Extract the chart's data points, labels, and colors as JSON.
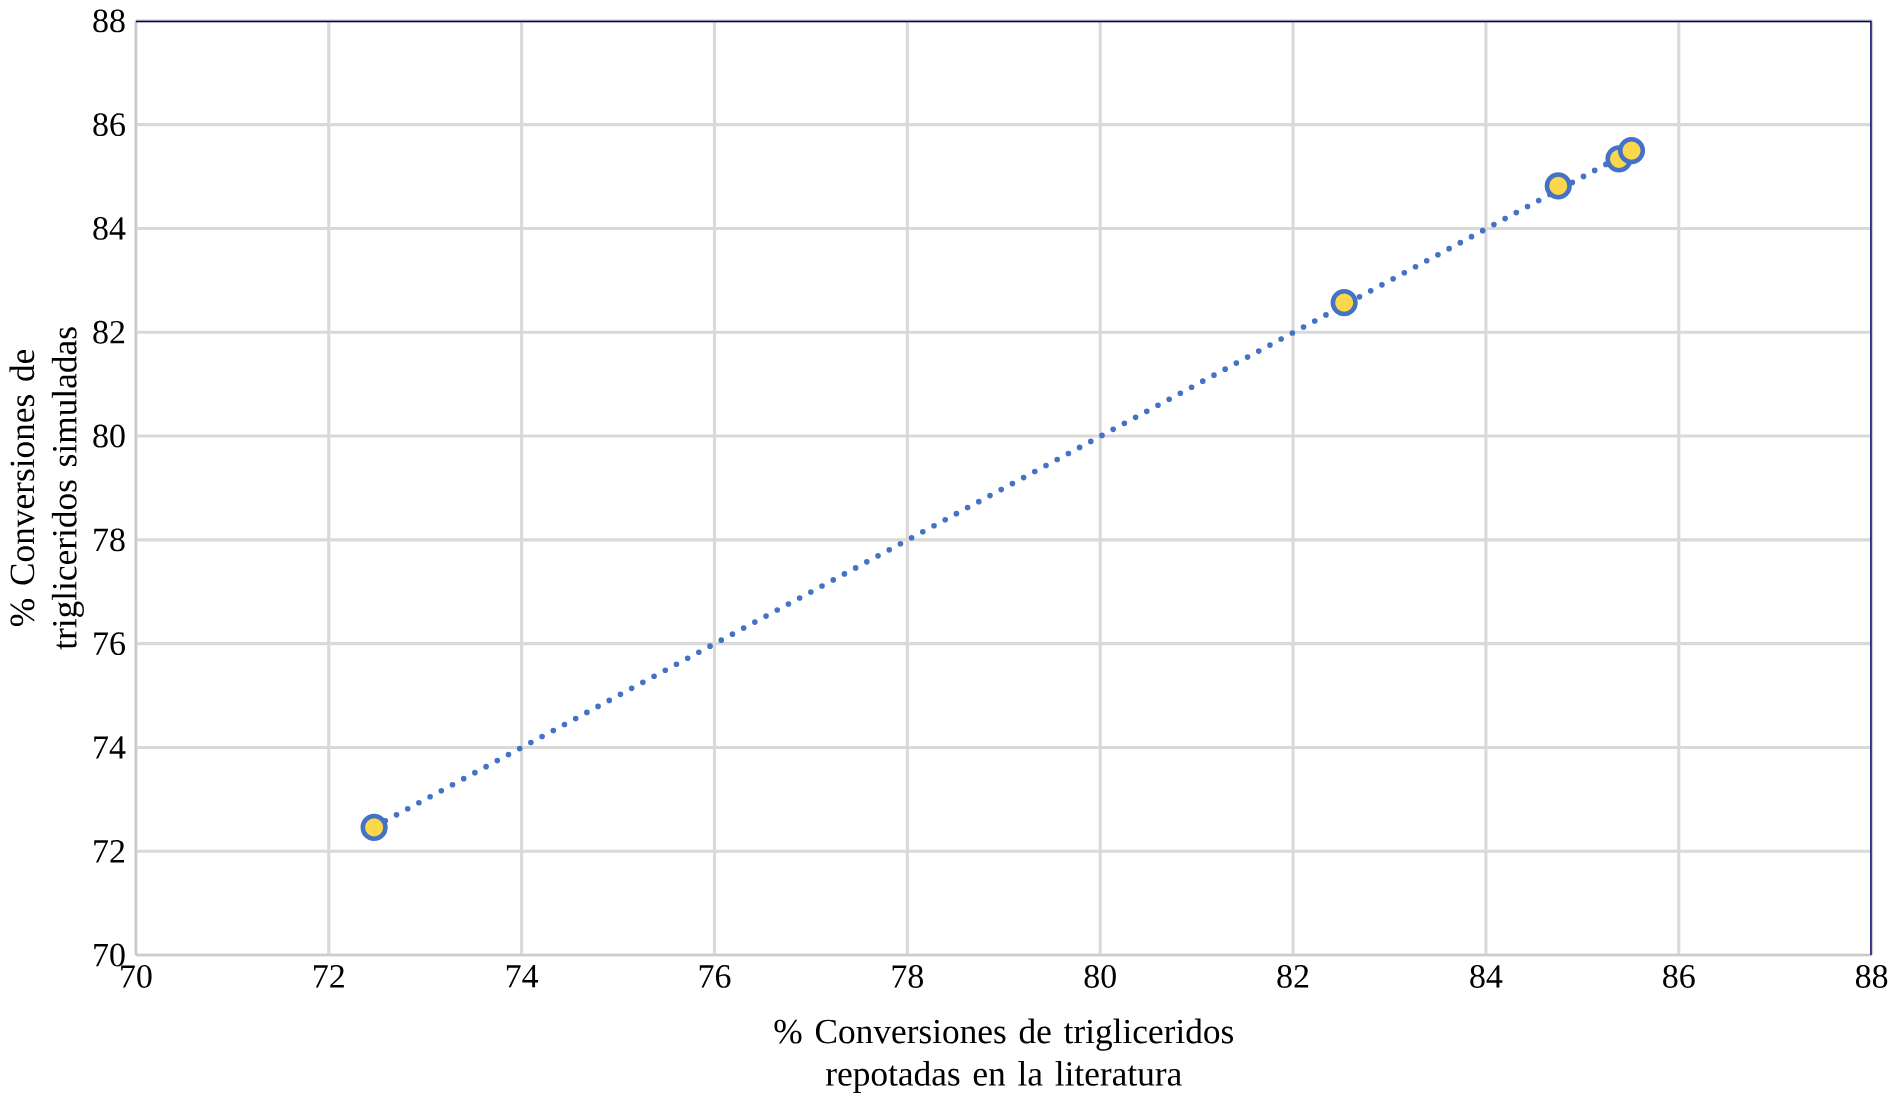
{
  "chart_data": {
    "type": "scatter",
    "xlabel": "% Conversiones de trigliceridos repotadas en la literatura",
    "ylabel": "% Conversiones de trigliceridos simuladas",
    "xlim": [
      70,
      88
    ],
    "ylim": [
      70,
      88
    ],
    "xticks": [
      70,
      72,
      74,
      76,
      78,
      80,
      82,
      84,
      86,
      88
    ],
    "yticks": [
      70,
      72,
      74,
      76,
      78,
      80,
      82,
      84,
      86,
      88
    ],
    "grid": true,
    "series": [
      {
        "color": "#4472c4",
        "marker": "circle",
        "x": [
          72.47,
          82.53,
          84.75,
          85.38,
          85.51
        ],
        "values": [
          72.46,
          82.57,
          84.82,
          85.34,
          85.5
        ]
      },
      {
        "type": "line",
        "color": "#4472c4",
        "line_style": "dotted",
        "marker": "none",
        "x": [
          72.47,
          85.51
        ],
        "values": [
          72.47,
          85.5
        ]
      }
    ]
  }
}
